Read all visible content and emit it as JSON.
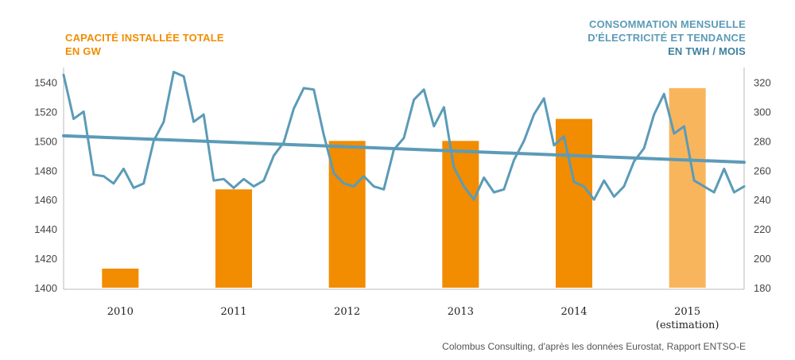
{
  "chart_data": {
    "type": "bar+line",
    "left_axis": {
      "title_lines": [
        "CAPACITÉ INSTALLÉE TOTALE",
        "EN GW"
      ],
      "range": [
        1400,
        1550
      ],
      "ticks": [
        1400,
        1420,
        1440,
        1460,
        1480,
        1500,
        1520,
        1540
      ]
    },
    "right_axis": {
      "title_lines": [
        "CONSOMMATION MENSUELLE",
        "D'ÉLECTRICITÉ ET TENDANCE",
        "EN TWH / MOIS"
      ],
      "range": [
        180,
        330
      ],
      "ticks": [
        180,
        200,
        220,
        240,
        260,
        280,
        300,
        320
      ]
    },
    "categories": [
      "2010",
      "2011",
      "2012",
      "2013",
      "2014",
      "2015"
    ],
    "category_sublabels": [
      "",
      "",
      "",
      "",
      "",
      "(estimation)"
    ],
    "bars": {
      "values": [
        1413,
        1467,
        1500,
        1500,
        1515,
        1536
      ],
      "colors": [
        "#f28c00",
        "#f28c00",
        "#f28c00",
        "#f28c00",
        "#f28c00",
        "#f9b55c"
      ]
    },
    "monthly_consumption": {
      "start": "2009-07",
      "values": [
        325,
        295,
        300,
        257,
        256,
        251,
        261,
        248,
        251,
        280,
        293,
        327,
        324,
        293,
        298,
        253,
        254,
        248,
        254,
        249,
        253,
        270,
        279,
        302,
        316,
        315,
        284,
        258,
        251,
        249,
        256,
        249,
        247,
        274,
        282,
        308,
        315,
        290,
        303,
        262,
        249,
        240,
        255,
        245,
        247,
        267,
        280,
        298,
        309,
        277,
        283,
        252,
        249,
        240,
        253,
        242,
        249,
        266,
        275,
        298,
        312,
        285,
        290,
        253,
        249,
        245,
        261,
        245,
        249
      ]
    },
    "trend": {
      "start": 283.5,
      "end": 265.5
    },
    "colors": {
      "bar": "#f28c00",
      "bar_estimate": "#f9b55c",
      "line": "#5b9bb8",
      "axis_text": "#444444"
    },
    "source": "Colombus Consulting, d'après les données Eurostat, Rapport ENTSO-E"
  }
}
